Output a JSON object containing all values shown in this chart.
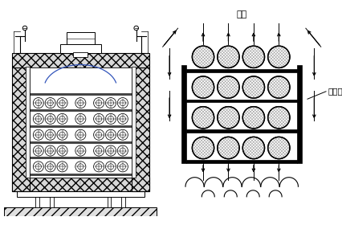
{
  "bg_color": "#ffffff",
  "label_fengdao": "风道",
  "label_daoliu": "导流板",
  "fig_width": 4.27,
  "fig_height": 2.8,
  "dpi": 100,
  "black": "#000000",
  "gray": "#aaaaaa",
  "light_gray": "#dddddd",
  "dark_gray": "#666666"
}
